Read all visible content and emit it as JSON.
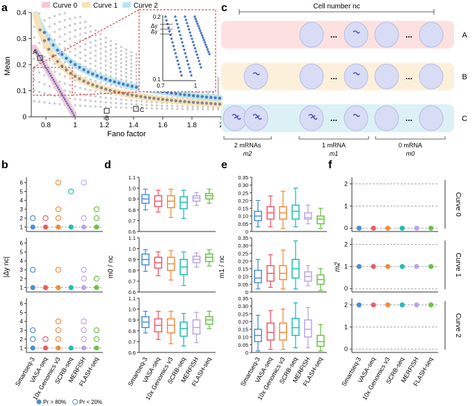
{
  "panel_letters": [
    "a",
    "b",
    "c",
    "d",
    "e",
    "f"
  ],
  "colors": {
    "curve0": "#f6c7d6",
    "curve1": "#f8e1b8",
    "curve2": "#b8e6ee",
    "grid_dots": "#c8c8c8",
    "dots_blue": "#4e79c4",
    "dots_grey": "#888888",
    "red_dashed": "#d62728",
    "methods": [
      "#4a8fd6",
      "#ec5a68",
      "#f28b3c",
      "#1fbdb4",
      "#b9a6e6",
      "#6cc04a"
    ],
    "cell_fill": "#d9dcf5",
    "mrna": "#4d5aa8",
    "band_A": "#fde1e1",
    "band_B": "#fdf0db",
    "band_C": "#dcf1f6"
  },
  "panel_a": {
    "legend": [
      "Curve 0",
      "Curve 1",
      "Curve 2"
    ],
    "xlabel": "Fano factor",
    "ylabel": "Mean",
    "x_ticks": [
      "0.8",
      "1",
      "1.2",
      "1.4",
      "1.6",
      "1.8",
      "2"
    ],
    "y_ticks": [
      "0",
      "0.1",
      "0.2",
      "0.3",
      "0.4"
    ],
    "point_labels": [
      "A",
      "B",
      "C"
    ],
    "inset_labels": [
      "Δy",
      "Δy"
    ],
    "inset_x_ticks": [
      "0.7",
      "1"
    ],
    "inset_y_ticks": [
      "0.1",
      "0.2"
    ]
  },
  "panel_c": {
    "title": "Cell number  nc",
    "rows": [
      "A",
      "B",
      "C"
    ],
    "brace_labels": [
      {
        "line1": "2 mRNAs",
        "line2": "m2"
      },
      {
        "line1": "1 mRNA",
        "line2": "m1"
      },
      {
        "line1": "0 mRNA",
        "line2": "m0"
      }
    ],
    "ellipsis": "..."
  },
  "methods": [
    "Smartseq-3",
    "VASA-seq",
    "10x Genomics v3",
    "SCRB-seq",
    "MERFISH",
    "FLASH-seq"
  ],
  "panel_b": {
    "ylabel": "|Δy nc|",
    "y_ticks": [
      "1",
      "2",
      "3",
      "4",
      "5",
      "6"
    ],
    "legend": [
      "Pr > 80%",
      "Pr < 20%"
    ]
  },
  "panel_d": {
    "ylabel": "m0 / nc",
    "y_ticks": [
      "0.6",
      "0.7",
      "0.8",
      "0.9",
      "1.0",
      "1.1"
    ]
  },
  "panel_e": {
    "ylabel": "m1 / nc",
    "y_ticks": [
      "0",
      "0.05",
      "0.10",
      "0.15",
      "0.20",
      "0.25",
      "0.30",
      "0.35"
    ]
  },
  "panel_f": {
    "ylabel": "m2",
    "y_ticks": [
      "0",
      "1",
      "2"
    ],
    "row_labels": [
      "Curve 0",
      "Curve 1",
      "Curve 2"
    ]
  },
  "chart_data": [
    {
      "type": "scatter",
      "panel": "a",
      "xlabel": "Fano factor",
      "ylabel": "Mean",
      "xlim": [
        0.7,
        2.0
      ],
      "ylim": [
        0,
        0.4
      ],
      "series": [
        {
          "name": "Curve 0",
          "x": [
            0.74,
            0.78,
            0.82,
            0.86,
            0.9,
            0.94,
            0.98,
            1.0
          ],
          "y": [
            0.26,
            0.22,
            0.18,
            0.14,
            0.1,
            0.06,
            0.02,
            0.0
          ]
        },
        {
          "name": "Curve 1",
          "x": [
            0.74,
            0.8,
            0.9,
            1.0,
            1.2,
            1.4,
            1.6,
            1.8,
            2.0
          ],
          "y": [
            0.28,
            0.2,
            0.14,
            0.11,
            0.075,
            0.055,
            0.045,
            0.035,
            0.03
          ]
        },
        {
          "name": "Curve 2",
          "x": [
            0.76,
            0.8,
            0.9,
            1.0,
            1.2,
            1.4,
            1.6,
            1.8,
            2.0
          ],
          "y": [
            0.33,
            0.27,
            0.2,
            0.16,
            0.12,
            0.095,
            0.075,
            0.06,
            0.05
          ]
        }
      ]
    },
    {
      "type": "scatter",
      "panel": "b",
      "ylabel": "|Δy nc|",
      "categories": [
        "Smartseq-3",
        "VASA-seq",
        "10x Genomics v3",
        "SCRB-seq",
        "MERFISH",
        "FLASH-seq"
      ],
      "rows": [
        {
          "curve": "Curve 0",
          "pr_gt_80": [
            1,
            1,
            1,
            1,
            1,
            1
          ],
          "pr_lt_20": [
            [
              2
            ],
            [
              2
            ],
            [
              2,
              3,
              6
            ],
            [
              5
            ],
            [
              2,
              6
            ],
            [
              2,
              3
            ]
          ]
        },
        {
          "curve": "Curve 1",
          "pr_gt_80": [
            1,
            1,
            1,
            1,
            1,
            1
          ],
          "pr_lt_20": [
            [
              3
            ],
            [],
            [
              3
            ],
            [],
            [
              2,
              3
            ],
            [
              2
            ]
          ]
        },
        {
          "curve": "Curve 2",
          "pr_gt_80": [
            1,
            1,
            1,
            1,
            1,
            1
          ],
          "pr_lt_20": [
            [
              2,
              3
            ],
            [
              2
            ],
            [
              2,
              3,
              4
            ],
            [],
            [
              2,
              3,
              4
            ],
            [
              2,
              3
            ]
          ]
        }
      ]
    },
    {
      "type": "box",
      "panel": "d",
      "ylabel": "m0 / nc",
      "ylim": [
        0.6,
        1.1
      ],
      "categories": [
        "Smartseq-3",
        "VASA-seq",
        "10x Genomics v3",
        "SCRB-seq",
        "MERFISH",
        "FLASH-seq"
      ],
      "rows": [
        [
          [
            0.8,
            0.86,
            0.9,
            0.94,
            0.99
          ],
          [
            0.78,
            0.83,
            0.88,
            0.93,
            0.98
          ],
          [
            0.73,
            0.82,
            0.88,
            0.93,
            0.99
          ],
          [
            0.72,
            0.81,
            0.87,
            0.92,
            0.98
          ],
          [
            0.84,
            0.88,
            0.91,
            0.93,
            0.96
          ],
          [
            0.86,
            0.9,
            0.93,
            0.95,
            0.99
          ]
        ],
        [
          [
            0.79,
            0.85,
            0.9,
            0.95,
            0.99
          ],
          [
            0.75,
            0.82,
            0.87,
            0.92,
            0.97
          ],
          [
            0.71,
            0.8,
            0.86,
            0.92,
            0.98
          ],
          [
            0.66,
            0.76,
            0.83,
            0.9,
            0.97
          ],
          [
            0.83,
            0.87,
            0.9,
            0.93,
            0.96
          ],
          [
            0.84,
            0.88,
            0.92,
            0.95,
            0.99
          ]
        ],
        [
          [
            0.78,
            0.83,
            0.88,
            0.93,
            0.98
          ],
          [
            0.72,
            0.79,
            0.85,
            0.91,
            0.98
          ],
          [
            0.68,
            0.78,
            0.85,
            0.91,
            0.98
          ],
          [
            0.66,
            0.75,
            0.82,
            0.88,
            0.96
          ],
          [
            0.69,
            0.77,
            0.83,
            0.9,
            0.97
          ],
          [
            0.82,
            0.86,
            0.9,
            0.93,
            0.98
          ]
        ]
      ]
    },
    {
      "type": "box",
      "panel": "e",
      "ylabel": "m1 / nc",
      "ylim": [
        0,
        0.35
      ],
      "categories": [
        "Smartseq-3",
        "VASA-seq",
        "10x Genomics v3",
        "SCRB-seq",
        "MERFISH",
        "FLASH-seq"
      ],
      "rows": [
        [
          [
            0.03,
            0.07,
            0.1,
            0.13,
            0.2
          ],
          [
            0.03,
            0.08,
            0.12,
            0.16,
            0.23
          ],
          [
            0.02,
            0.08,
            0.12,
            0.16,
            0.26
          ],
          [
            0.03,
            0.08,
            0.13,
            0.17,
            0.28
          ],
          [
            0.05,
            0.08,
            0.09,
            0.12,
            0.17
          ],
          [
            0.02,
            0.05,
            0.08,
            0.1,
            0.15
          ]
        ],
        [
          [
            0.02,
            0.06,
            0.09,
            0.14,
            0.21
          ],
          [
            0.03,
            0.07,
            0.12,
            0.17,
            0.24
          ],
          [
            0.02,
            0.08,
            0.12,
            0.17,
            0.27
          ],
          [
            0.02,
            0.09,
            0.15,
            0.21,
            0.33
          ],
          [
            0.04,
            0.07,
            0.1,
            0.13,
            0.17
          ],
          [
            0.01,
            0.05,
            0.08,
            0.11,
            0.15
          ]
        ],
        [
          [
            0.01,
            0.07,
            0.11,
            0.15,
            0.24
          ],
          [
            0.02,
            0.08,
            0.13,
            0.19,
            0.27
          ],
          [
            0.02,
            0.08,
            0.13,
            0.19,
            0.28
          ],
          [
            0.03,
            0.11,
            0.16,
            0.22,
            0.32
          ],
          [
            0.03,
            0.1,
            0.15,
            0.21,
            0.29
          ],
          [
            0.01,
            0.04,
            0.07,
            0.11,
            0.18
          ]
        ]
      ]
    },
    {
      "type": "scatter",
      "panel": "f",
      "ylabel": "m2",
      "ylim": [
        0,
        2
      ],
      "categories": [
        "Smartseq-3",
        "VASA-seq",
        "10x Genomics v3",
        "SCRB-seq",
        "MERFISH",
        "FLASH-seq"
      ],
      "rows": [
        {
          "curve": "Curve 0",
          "values": [
            0,
            0,
            0,
            0,
            0,
            0
          ]
        },
        {
          "curve": "Curve 1",
          "values": [
            1,
            1,
            1,
            1,
            1,
            1
          ]
        },
        {
          "curve": "Curve 2",
          "values": [
            2,
            2,
            2,
            2,
            2,
            2
          ]
        }
      ]
    }
  ]
}
